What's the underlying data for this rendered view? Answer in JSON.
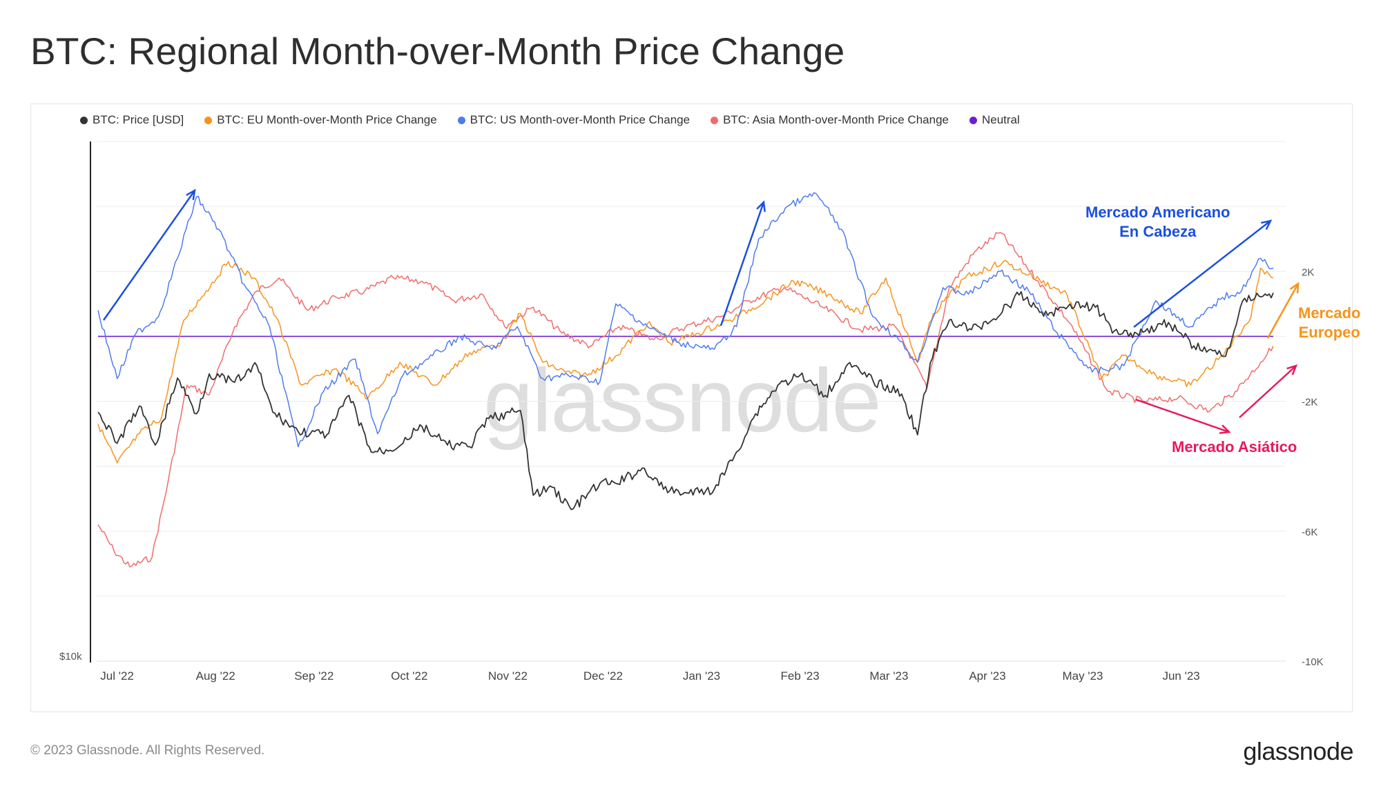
{
  "header": {
    "title": "BTC: Regional Month-over-Month Price Change"
  },
  "legend": [
    {
      "label": "BTC: Price [USD]",
      "color": "#333333"
    },
    {
      "label": "BTC: EU Month-over-Month Price Change",
      "color": "#f7931a"
    },
    {
      "label": "BTC: US Month-over-Month Price Change",
      "color": "#4f7bf0"
    },
    {
      "label": "BTC: Asia Month-over-Month Price Change",
      "color": "#f26b6b"
    },
    {
      "label": "Neutral",
      "color": "#6a1fd0"
    }
  ],
  "watermark": "glassnode",
  "annotations": {
    "us_line1": "Mercado Americano",
    "us_line2": "En Cabeza",
    "eu_line1": "Mercado",
    "eu_line2": "Europeo",
    "asia": "Mercado Asiático",
    "colors": {
      "us": "#1a4fe0",
      "eu": "#f7931a",
      "asia": "#e8195a"
    }
  },
  "footer": {
    "copyright": "© 2023 Glassnode. All Rights Reserved.",
    "logo": "glassnode"
  },
  "chart_data": {
    "type": "line",
    "x_ticks": [
      "Jul '22",
      "Aug '22",
      "Sep '22",
      "Oct '22",
      "Nov '22",
      "Dec '22",
      "Jan '23",
      "Feb '23",
      "Mar '23",
      "Apr '23",
      "May '23",
      "Jun '23"
    ],
    "left_axis": {
      "label_bottom": "$10k",
      "scale": "log"
    },
    "right_axis": {
      "ticks": [
        "2K",
        "-2K",
        "-6K",
        "-10K"
      ],
      "tick_values": [
        2000,
        -2000,
        -6000,
        -10000
      ],
      "ylim": [
        -10000,
        6000
      ]
    },
    "x_range": [
      "2022-06-25",
      "2023-06-30"
    ],
    "series": [
      {
        "name": "BTC: Price [USD]",
        "axis": "left",
        "color": "#333333",
        "points": [
          [
            "2022-06-25",
            21200
          ],
          [
            "2022-07-01",
            19300
          ],
          [
            "2022-07-08",
            21600
          ],
          [
            "2022-07-13",
            19200
          ],
          [
            "2022-07-20",
            23500
          ],
          [
            "2022-07-26",
            21100
          ],
          [
            "2022-07-30",
            23800
          ],
          [
            "2022-08-07",
            23200
          ],
          [
            "2022-08-14",
            24400
          ],
          [
            "2022-08-19",
            21200
          ],
          [
            "2022-08-27",
            20000
          ],
          [
            "2022-09-05",
            19800
          ],
          [
            "2022-09-12",
            22300
          ],
          [
            "2022-09-19",
            18800
          ],
          [
            "2022-09-25",
            18900
          ],
          [
            "2022-10-05",
            20300
          ],
          [
            "2022-10-13",
            19200
          ],
          [
            "2022-10-20",
            19100
          ],
          [
            "2022-10-26",
            20800
          ],
          [
            "2022-11-05",
            21300
          ],
          [
            "2022-11-09",
            16500
          ],
          [
            "2022-11-15",
            16900
          ],
          [
            "2022-11-21",
            15800
          ],
          [
            "2022-11-30",
            17100
          ],
          [
            "2022-12-05",
            17100
          ],
          [
            "2022-12-14",
            17900
          ],
          [
            "2022-12-20",
            16800
          ],
          [
            "2022-12-28",
            16600
          ],
          [
            "2023-01-05",
            16800
          ],
          [
            "2023-01-12",
            18800
          ],
          [
            "2023-01-18",
            21100
          ],
          [
            "2023-01-25",
            23000
          ],
          [
            "2023-02-01",
            23700
          ],
          [
            "2023-02-09",
            22300
          ],
          [
            "2023-02-16",
            24500
          ],
          [
            "2023-02-24",
            23300
          ],
          [
            "2023-03-05",
            22400
          ],
          [
            "2023-03-10",
            19800
          ],
          [
            "2023-03-14",
            24600
          ],
          [
            "2023-03-20",
            28000
          ],
          [
            "2023-03-27",
            27200
          ],
          [
            "2023-04-03",
            28100
          ],
          [
            "2023-04-11",
            30200
          ],
          [
            "2023-04-20",
            28400
          ],
          [
            "2023-04-27",
            29400
          ],
          [
            "2023-05-05",
            29100
          ],
          [
            "2023-05-11",
            27100
          ],
          [
            "2023-05-18",
            26900
          ],
          [
            "2023-05-28",
            27800
          ],
          [
            "2023-06-05",
            25900
          ],
          [
            "2023-06-15",
            25100
          ],
          [
            "2023-06-21",
            29900
          ],
          [
            "2023-06-30",
            30400
          ]
        ]
      },
      {
        "name": "BTC: EU Month-over-Month Price Change",
        "axis": "right",
        "color": "#f7931a",
        "points": [
          [
            "2022-06-25",
            -2700
          ],
          [
            "2022-07-01",
            -3900
          ],
          [
            "2022-07-08",
            -3000
          ],
          [
            "2022-07-15",
            -2500
          ],
          [
            "2022-07-22",
            500
          ],
          [
            "2022-07-29",
            1400
          ],
          [
            "2022-08-05",
            2300
          ],
          [
            "2022-08-13",
            1800
          ],
          [
            "2022-08-20",
            600
          ],
          [
            "2022-08-28",
            -1500
          ],
          [
            "2022-09-08",
            -1000
          ],
          [
            "2022-09-18",
            -1900
          ],
          [
            "2022-09-28",
            -800
          ],
          [
            "2022-10-09",
            -1500
          ],
          [
            "2022-10-20",
            -500
          ],
          [
            "2022-10-30",
            -200
          ],
          [
            "2022-11-05",
            700
          ],
          [
            "2022-11-12",
            -800
          ],
          [
            "2022-11-19",
            -1100
          ],
          [
            "2022-11-26",
            -1200
          ],
          [
            "2022-12-05",
            -600
          ],
          [
            "2022-12-15",
            400
          ],
          [
            "2022-12-22",
            -200
          ],
          [
            "2022-12-31",
            100
          ],
          [
            "2023-01-10",
            500
          ],
          [
            "2023-01-21",
            1100
          ],
          [
            "2023-01-30",
            1700
          ],
          [
            "2023-02-10",
            1300
          ],
          [
            "2023-02-20",
            700
          ],
          [
            "2023-02-28",
            1800
          ],
          [
            "2023-03-10",
            -800
          ],
          [
            "2023-03-15",
            700
          ],
          [
            "2023-03-25",
            1800
          ],
          [
            "2023-04-06",
            2300
          ],
          [
            "2023-04-14",
            1900
          ],
          [
            "2023-04-26",
            1300
          ],
          [
            "2023-05-07",
            -1300
          ],
          [
            "2023-05-14",
            -600
          ],
          [
            "2023-05-24",
            -1200
          ],
          [
            "2023-06-04",
            -1500
          ],
          [
            "2023-06-14",
            -600
          ],
          [
            "2023-06-23",
            600
          ],
          [
            "2023-06-26",
            2100
          ],
          [
            "2023-06-30",
            1800
          ]
        ]
      },
      {
        "name": "BTC: US Month-over-Month Price Change",
        "axis": "right",
        "color": "#4f7bf0",
        "points": [
          [
            "2022-06-25",
            800
          ],
          [
            "2022-07-01",
            -1300
          ],
          [
            "2022-07-07",
            100
          ],
          [
            "2022-07-14",
            600
          ],
          [
            "2022-07-20",
            2400
          ],
          [
            "2022-07-26",
            4300
          ],
          [
            "2022-08-02",
            3300
          ],
          [
            "2022-08-10",
            1600
          ],
          [
            "2022-08-18",
            300
          ],
          [
            "2022-08-27",
            -3400
          ],
          [
            "2022-09-04",
            -1700
          ],
          [
            "2022-09-14",
            -700
          ],
          [
            "2022-09-21",
            -3000
          ],
          [
            "2022-09-29",
            -1200
          ],
          [
            "2022-10-07",
            -700
          ],
          [
            "2022-10-17",
            0
          ],
          [
            "2022-10-27",
            -400
          ],
          [
            "2022-11-04",
            300
          ],
          [
            "2022-11-12",
            -1300
          ],
          [
            "2022-11-20",
            -1200
          ],
          [
            "2022-11-30",
            -1400
          ],
          [
            "2022-12-05",
            1000
          ],
          [
            "2022-12-15",
            300
          ],
          [
            "2022-12-25",
            -200
          ],
          [
            "2023-01-05",
            -400
          ],
          [
            "2023-01-12",
            300
          ],
          [
            "2023-01-19",
            3000
          ],
          [
            "2023-01-28",
            4000
          ],
          [
            "2023-02-06",
            4400
          ],
          [
            "2023-02-14",
            3300
          ],
          [
            "2023-02-24",
            600
          ],
          [
            "2023-03-04",
            -100
          ],
          [
            "2023-03-10",
            -800
          ],
          [
            "2023-03-18",
            1500
          ],
          [
            "2023-03-26",
            1300
          ],
          [
            "2023-04-05",
            2000
          ],
          [
            "2023-04-14",
            1400
          ],
          [
            "2023-04-23",
            100
          ],
          [
            "2023-05-04",
            -1100
          ],
          [
            "2023-05-14",
            -900
          ],
          [
            "2023-05-24",
            1100
          ],
          [
            "2023-06-04",
            300
          ],
          [
            "2023-06-14",
            1200
          ],
          [
            "2023-06-20",
            1400
          ],
          [
            "2023-06-26",
            2400
          ],
          [
            "2023-06-30",
            2100
          ]
        ]
      },
      {
        "name": "BTC: Asia Month-over-Month Price Change",
        "axis": "right",
        "color": "#f26b6b",
        "points": [
          [
            "2022-06-25",
            -5800
          ],
          [
            "2022-06-30",
            -6600
          ],
          [
            "2022-07-05",
            -7100
          ],
          [
            "2022-07-12",
            -6800
          ],
          [
            "2022-07-17",
            -4500
          ],
          [
            "2022-07-23",
            -1500
          ],
          [
            "2022-07-30",
            -1800
          ],
          [
            "2022-08-07",
            300
          ],
          [
            "2022-08-14",
            1400
          ],
          [
            "2022-08-21",
            1800
          ],
          [
            "2022-08-30",
            800
          ],
          [
            "2022-09-08",
            1200
          ],
          [
            "2022-09-17",
            1400
          ],
          [
            "2022-09-26",
            1800
          ],
          [
            "2022-10-05",
            1700
          ],
          [
            "2022-10-15",
            1100
          ],
          [
            "2022-10-24",
            1300
          ],
          [
            "2022-10-31",
            300
          ],
          [
            "2022-11-09",
            900
          ],
          [
            "2022-11-18",
            100
          ],
          [
            "2022-11-27",
            -300
          ],
          [
            "2022-12-06",
            300
          ],
          [
            "2022-12-17",
            -100
          ],
          [
            "2022-12-27",
            300
          ],
          [
            "2023-01-07",
            600
          ],
          [
            "2023-01-16",
            1100
          ],
          [
            "2023-01-27",
            1500
          ],
          [
            "2023-02-08",
            900
          ],
          [
            "2023-02-20",
            200
          ],
          [
            "2023-03-03",
            300
          ],
          [
            "2023-03-13",
            -1600
          ],
          [
            "2023-03-20",
            1500
          ],
          [
            "2023-03-28",
            2600
          ],
          [
            "2023-04-05",
            3200
          ],
          [
            "2023-04-17",
            1700
          ],
          [
            "2023-04-27",
            400
          ],
          [
            "2023-05-09",
            -1700
          ],
          [
            "2023-05-20",
            -2000
          ],
          [
            "2023-05-31",
            -1900
          ],
          [
            "2023-06-10",
            -2300
          ],
          [
            "2023-06-18",
            -1700
          ],
          [
            "2023-06-26",
            -800
          ],
          [
            "2023-06-30",
            -300
          ]
        ]
      },
      {
        "name": "Neutral",
        "axis": "right",
        "color": "#6a1fd0",
        "points": [
          [
            "2022-06-25",
            0
          ],
          [
            "2023-06-30",
            0
          ]
        ]
      }
    ]
  }
}
